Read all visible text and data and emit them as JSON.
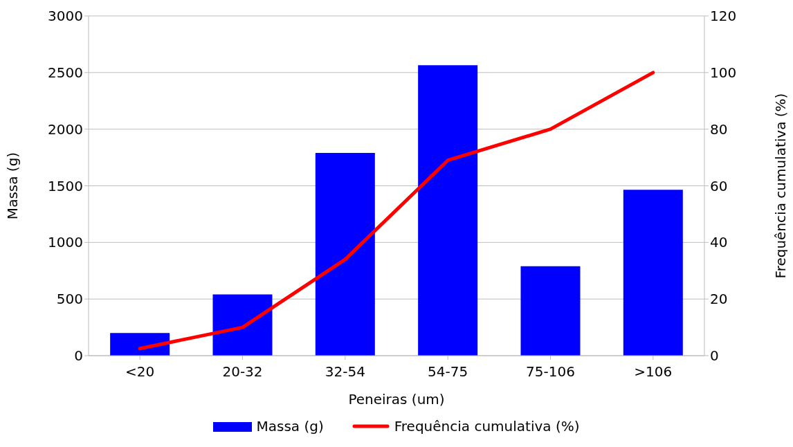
{
  "chart_data": {
    "type": "bar",
    "xlabel": "Peneiras (um)",
    "ylabel": "Massa (g)",
    "y2label": "Frequência cumulativa (%)",
    "categories": [
      "<20",
      "20-32",
      "32-54",
      "54-75",
      "75-106",
      ">106"
    ],
    "series": [
      {
        "name": "Massa (g)",
        "color": "#0000ff",
        "values": [
          200,
          540,
          1790,
          2565,
          790,
          1465
        ]
      },
      {
        "name": "Frequência cumulativa (%)",
        "type": "line",
        "axis": "y2",
        "color": "#ff0000",
        "values": [
          2.5,
          10,
          34,
          69,
          80,
          100
        ]
      }
    ],
    "ylim": [
      0,
      3000
    ],
    "yticks": [
      0,
      500,
      1000,
      1500,
      2000,
      2500,
      3000
    ],
    "y2lim": [
      0,
      120
    ],
    "y2ticks": [
      0,
      20,
      40,
      60,
      80,
      100,
      120
    ],
    "grid": "y",
    "legend": "bottom",
    "marker": "none",
    "line_style": "solid"
  }
}
